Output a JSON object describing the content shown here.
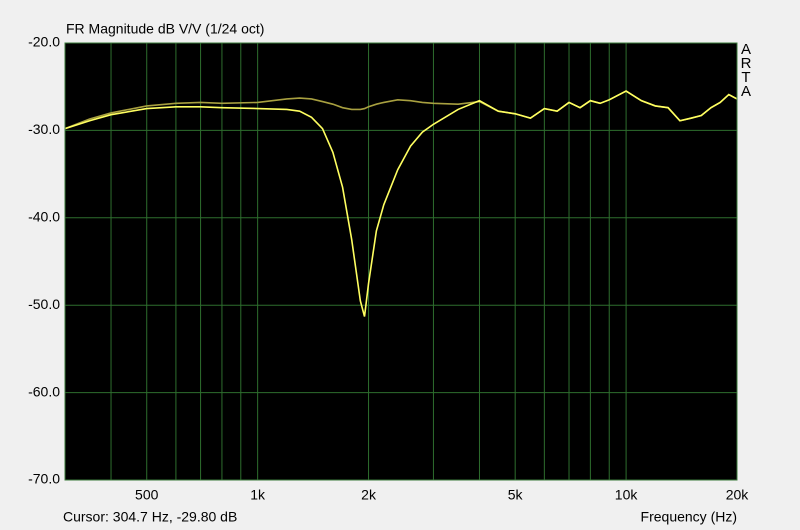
{
  "chart_data": {
    "type": "line",
    "title": "FR Magnitude dB V/V (1/24 oct)",
    "watermark": "ARTA",
    "status": "Cursor: 304.7 Hz, -29.80 dB",
    "x_label": "Frequency (Hz)",
    "xscale": "log",
    "grid": true,
    "xlim": [
      300,
      20000
    ],
    "ylim": [
      -70,
      -20
    ],
    "xticks": [
      500,
      {
        "value": 1000,
        "label": "1k"
      },
      {
        "value": 2000,
        "label": "2k"
      },
      {
        "value": 5000,
        "label": "5k"
      },
      {
        "value": 10000,
        "label": "10k"
      },
      {
        "value": 20000,
        "label": "20k"
      }
    ],
    "xgrid_minor": [
      300,
      400,
      600,
      700,
      800,
      900,
      3000,
      4000,
      6000,
      7000,
      8000,
      9000
    ],
    "yticks": [
      {
        "value": -20,
        "label": "-20.0"
      },
      {
        "value": -30,
        "label": "-30.0"
      },
      {
        "value": -40,
        "label": "-40.0"
      },
      {
        "value": -50,
        "label": "-50.0"
      },
      {
        "value": -60,
        "label": "-60.0"
      },
      {
        "value": -70,
        "label": "-70.0"
      }
    ],
    "x": [
      300,
      350,
      400,
      500,
      600,
      700,
      800,
      1000,
      1200,
      1300,
      1400,
      1500,
      1600,
      1700,
      1800,
      1900,
      1950,
      2000,
      2100,
      2200,
      2400,
      2600,
      2800,
      3000,
      3500,
      4000,
      4500,
      5000,
      5500,
      6000,
      6500,
      7000,
      7500,
      8000,
      8500,
      9000,
      10000,
      11000,
      12000,
      13000,
      14000,
      15000,
      16000,
      17000,
      18000,
      19000,
      20000
    ],
    "series": [
      {
        "color": "#a8a040",
        "values": [
          -29.8,
          -28.7,
          -28.0,
          -27.2,
          -26.9,
          -26.8,
          -26.9,
          -26.8,
          -26.4,
          -26.3,
          -26.4,
          -26.7,
          -27.0,
          -27.4,
          -27.6,
          -27.6,
          -27.5,
          -27.3,
          -27.0,
          -26.8,
          -26.5,
          -26.6,
          -26.8,
          -26.9,
          -27.0,
          -26.7,
          -27.8,
          -28.1,
          -28.6,
          -27.5,
          -27.8,
          -26.8,
          -27.4,
          -26.6,
          -26.9,
          -26.5,
          -25.5,
          -26.6,
          -27.2,
          -27.4,
          -28.9,
          -28.6,
          -28.3,
          -27.4,
          -26.8,
          -25.9,
          -26.4
        ]
      },
      {
        "color": "#ffff60",
        "values": [
          -29.8,
          -28.9,
          -28.2,
          -27.5,
          -27.3,
          -27.3,
          -27.4,
          -27.5,
          -27.6,
          -27.8,
          -28.5,
          -29.8,
          -32.5,
          -36.5,
          -42.5,
          -49.5,
          -51.3,
          -47.5,
          -41.5,
          -38.5,
          -34.5,
          -31.8,
          -30.2,
          -29.3,
          -27.6,
          -26.6,
          -27.8,
          -28.1,
          -28.6,
          -27.5,
          -27.8,
          -26.8,
          -27.4,
          -26.6,
          -26.9,
          -26.5,
          -25.5,
          -26.6,
          -27.2,
          -27.4,
          -28.9,
          -28.6,
          -28.3,
          -27.4,
          -26.8,
          -25.9,
          -26.4
        ]
      }
    ]
  }
}
